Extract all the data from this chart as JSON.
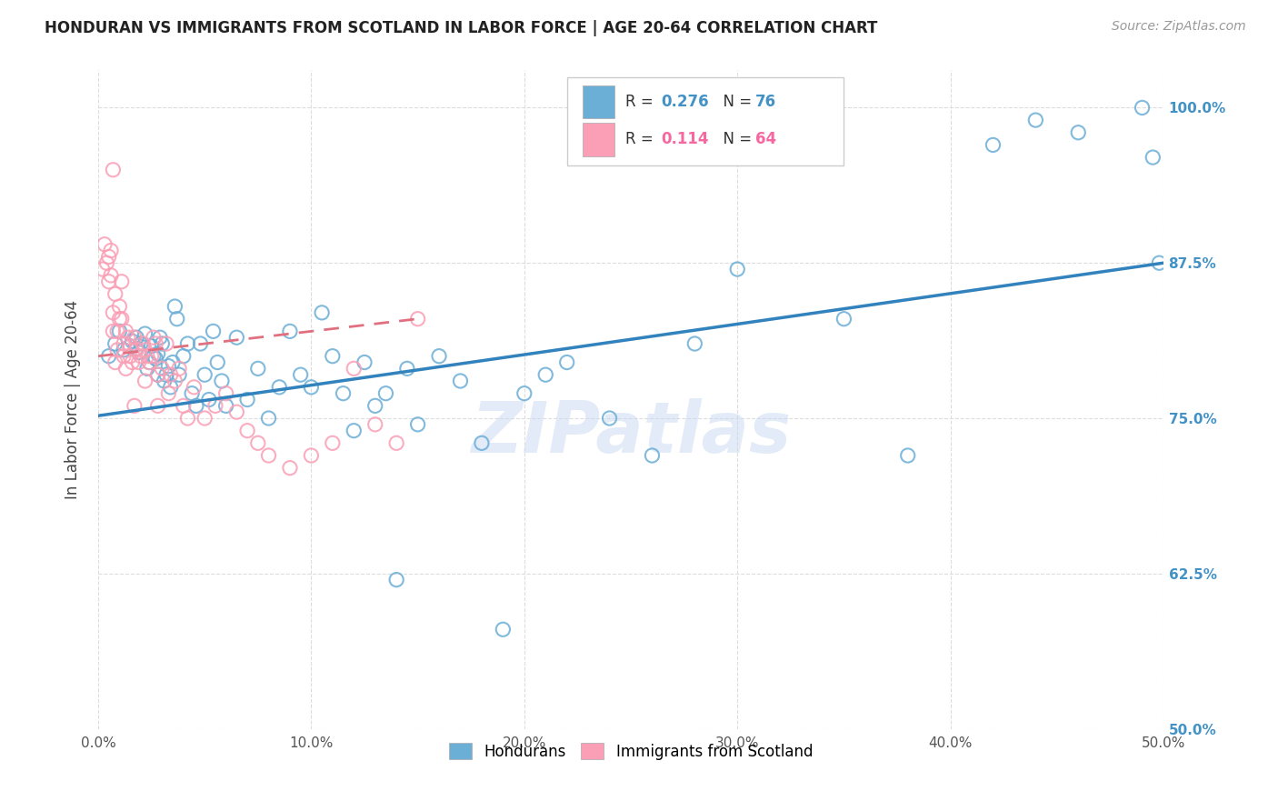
{
  "title": "HONDURAN VS IMMIGRANTS FROM SCOTLAND IN LABOR FORCE | AGE 20-64 CORRELATION CHART",
  "source": "Source: ZipAtlas.com",
  "ylabel": "In Labor Force | Age 20-64",
  "xlim": [
    0.0,
    0.5
  ],
  "ylim": [
    0.5,
    1.03
  ],
  "xtick_labels": [
    "0.0%",
    "10.0%",
    "20.0%",
    "30.0%",
    "40.0%",
    "50.0%"
  ],
  "xtick_vals": [
    0.0,
    0.1,
    0.2,
    0.3,
    0.4,
    0.5
  ],
  "ytick_labels": [
    "50.0%",
    "62.5%",
    "75.0%",
    "87.5%",
    "100.0%"
  ],
  "ytick_vals": [
    0.5,
    0.625,
    0.75,
    0.875,
    1.0
  ],
  "color_blue": "#6baed6",
  "color_pink": "#fa9fb5",
  "color_blue_text": "#4292c6",
  "color_pink_text": "#f768a1",
  "watermark": "ZIPatlas",
  "blue_scatter_x": [
    0.005,
    0.008,
    0.01,
    0.012,
    0.015,
    0.016,
    0.018,
    0.018,
    0.019,
    0.02,
    0.022,
    0.023,
    0.024,
    0.025,
    0.026,
    0.027,
    0.028,
    0.028,
    0.029,
    0.03,
    0.031,
    0.032,
    0.033,
    0.034,
    0.035,
    0.036,
    0.037,
    0.038,
    0.04,
    0.042,
    0.044,
    0.046,
    0.048,
    0.05,
    0.052,
    0.054,
    0.056,
    0.058,
    0.06,
    0.065,
    0.07,
    0.075,
    0.08,
    0.085,
    0.09,
    0.095,
    0.1,
    0.105,
    0.11,
    0.115,
    0.12,
    0.125,
    0.13,
    0.135,
    0.14,
    0.145,
    0.15,
    0.16,
    0.17,
    0.18,
    0.19,
    0.2,
    0.21,
    0.22,
    0.24,
    0.26,
    0.28,
    0.3,
    0.35,
    0.38,
    0.42,
    0.44,
    0.46,
    0.49,
    0.495,
    0.498
  ],
  "blue_scatter_y": [
    0.8,
    0.81,
    0.82,
    0.805,
    0.808,
    0.812,
    0.806,
    0.815,
    0.803,
    0.81,
    0.818,
    0.79,
    0.795,
    0.808,
    0.8,
    0.798,
    0.802,
    0.785,
    0.815,
    0.81,
    0.78,
    0.785,
    0.792,
    0.775,
    0.795,
    0.84,
    0.83,
    0.785,
    0.8,
    0.81,
    0.77,
    0.76,
    0.81,
    0.785,
    0.765,
    0.82,
    0.795,
    0.78,
    0.76,
    0.815,
    0.765,
    0.79,
    0.75,
    0.775,
    0.82,
    0.785,
    0.775,
    0.835,
    0.8,
    0.77,
    0.74,
    0.795,
    0.76,
    0.77,
    0.62,
    0.79,
    0.745,
    0.8,
    0.78,
    0.73,
    0.58,
    0.77,
    0.785,
    0.795,
    0.75,
    0.72,
    0.81,
    0.87,
    0.83,
    0.72,
    0.97,
    0.99,
    0.98,
    1.0,
    0.96,
    0.875
  ],
  "pink_scatter_x": [
    0.002,
    0.003,
    0.004,
    0.005,
    0.005,
    0.006,
    0.006,
    0.007,
    0.007,
    0.008,
    0.008,
    0.009,
    0.01,
    0.01,
    0.011,
    0.012,
    0.012,
    0.013,
    0.014,
    0.015,
    0.015,
    0.016,
    0.017,
    0.018,
    0.019,
    0.02,
    0.021,
    0.022,
    0.023,
    0.024,
    0.025,
    0.026,
    0.027,
    0.028,
    0.03,
    0.032,
    0.034,
    0.036,
    0.038,
    0.04,
    0.045,
    0.05,
    0.055,
    0.06,
    0.065,
    0.07,
    0.075,
    0.08,
    0.09,
    0.1,
    0.11,
    0.12,
    0.13,
    0.14,
    0.15,
    0.007,
    0.009,
    0.011,
    0.013,
    0.017,
    0.022,
    0.028,
    0.033,
    0.042
  ],
  "pink_scatter_y": [
    0.87,
    0.89,
    0.875,
    0.88,
    0.86,
    0.865,
    0.885,
    0.82,
    0.835,
    0.85,
    0.795,
    0.805,
    0.84,
    0.83,
    0.86,
    0.8,
    0.81,
    0.82,
    0.815,
    0.808,
    0.8,
    0.795,
    0.815,
    0.805,
    0.795,
    0.8,
    0.81,
    0.805,
    0.8,
    0.795,
    0.8,
    0.815,
    0.81,
    0.785,
    0.79,
    0.81,
    0.785,
    0.78,
    0.79,
    0.76,
    0.775,
    0.75,
    0.76,
    0.77,
    0.755,
    0.74,
    0.73,
    0.72,
    0.71,
    0.72,
    0.73,
    0.79,
    0.745,
    0.73,
    0.83,
    0.95,
    0.82,
    0.83,
    0.79,
    0.76,
    0.78,
    0.76,
    0.77,
    0.75
  ],
  "blue_line_x": [
    0.0,
    0.5
  ],
  "blue_line_y": [
    0.752,
    0.875
  ],
  "pink_line_x": [
    0.0,
    0.15
  ],
  "pink_line_y": [
    0.8,
    0.83
  ]
}
